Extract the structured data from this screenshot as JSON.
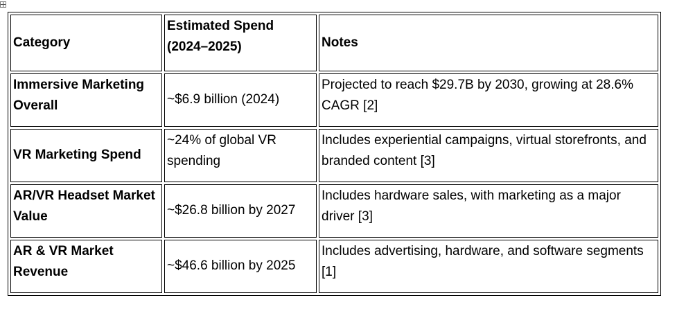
{
  "table": {
    "headers": [
      "Category",
      "Estimated Spend (2024–2025)",
      "Notes"
    ],
    "rows": [
      {
        "category": "Immersive Marketing Overall",
        "spend": "~$6.9 billion (2024)",
        "notes": "Projected to reach $29.7B by 2030, growing at 28.6% CAGR [2]"
      },
      {
        "category": "VR Marketing Spend",
        "spend": "~24% of global VR spending",
        "notes": "Includes experiential campaigns, virtual storefronts, and branded content [3]"
      },
      {
        "category": "AR/VR Headset Market Value",
        "spend": "~$26.8 billion by 2027",
        "notes": "Includes hardware sales, with marketing as a major driver [3]"
      },
      {
        "category": "AR & VR Market Revenue",
        "spend": "~$46.6 billion by 2025",
        "notes": "Includes advertising, hardware, and software segments [1]"
      }
    ]
  },
  "icons": {
    "table_move_handle": "move-cross-icon"
  }
}
